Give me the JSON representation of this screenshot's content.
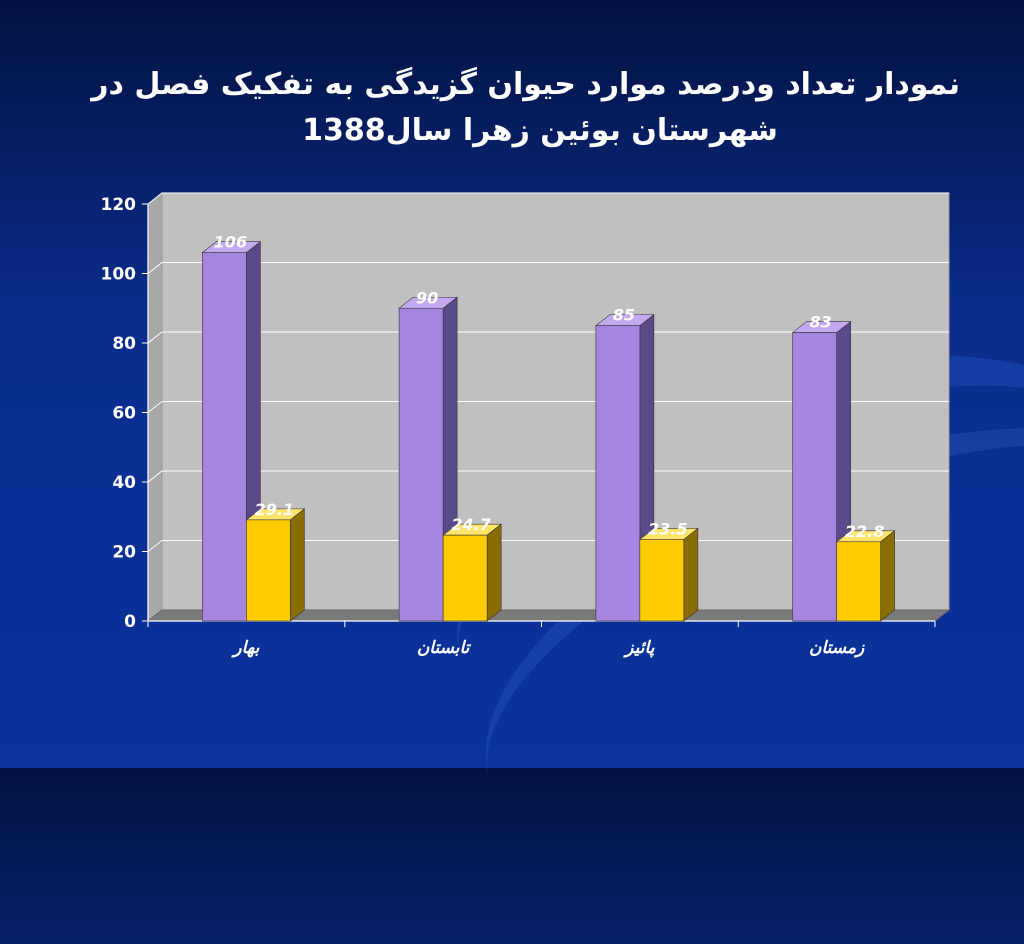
{
  "title_line1": "نمودار تعداد ودرصد موارد حیوان گزیدگی به تفکیک فصل در",
  "title_line2": "شهرستان بوئین زهرا سال1388",
  "colors": {
    "series_count": "#a685e0",
    "series_count_side": "#5a4a8a",
    "series_count_top": "#c4a9f0",
    "series_percent": "#ffcc00",
    "series_percent_side": "#8a6d00",
    "series_percent_top": "#ffe36b",
    "plot_bg": "#c0c0c0",
    "floor": "#7a7a7a",
    "background": "#0a2c8c"
  },
  "chart_data": {
    "type": "bar",
    "categories": [
      "بهار",
      "تابستان",
      "پائیز",
      "زمستان"
    ],
    "series": [
      {
        "values": [
          106,
          90,
          85,
          83
        ],
        "labels": [
          "106",
          "90",
          "85",
          "83"
        ]
      },
      {
        "values": [
          29.1,
          24.7,
          23.5,
          22.8
        ],
        "labels": [
          "29.1",
          "24.7",
          "23.5",
          "22.8"
        ]
      }
    ],
    "ylim": [
      0,
      120
    ],
    "yticks": [
      "0",
      "20",
      "40",
      "60",
      "80",
      "100",
      "120"
    ],
    "grid": true,
    "legend": "none"
  }
}
